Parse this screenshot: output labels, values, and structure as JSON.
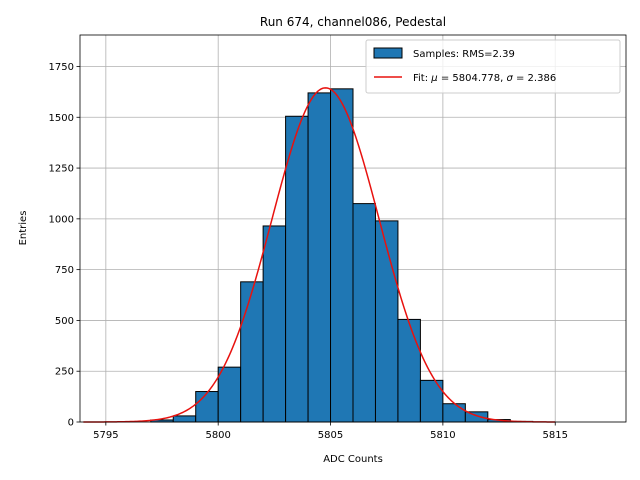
{
  "chart_data": {
    "type": "bar",
    "title": "Run 674, channel086, Pedestal",
    "xlabel": "ADC Counts",
    "ylabel": "Entries",
    "xlim": [
      5793.85,
      5818.15
    ],
    "ylim": [
      0,
      1905
    ],
    "x_ticks": [
      5795,
      5800,
      5805,
      5810,
      5815
    ],
    "y_ticks": [
      0,
      250,
      500,
      750,
      1000,
      1250,
      1500,
      1750
    ],
    "grid": true,
    "legend_position": "upper right",
    "histogram": {
      "name": "Samples: RMS=2.39",
      "color": "#1f77b4",
      "edge_color": "#000000",
      "bins": [
        {
          "left": 5797,
          "right": 5798,
          "value": 10
        },
        {
          "left": 5798,
          "right": 5799,
          "value": 30
        },
        {
          "left": 5799,
          "right": 5800,
          "value": 150
        },
        {
          "left": 5800,
          "right": 5801,
          "value": 270
        },
        {
          "left": 5801,
          "right": 5802,
          "value": 690
        },
        {
          "left": 5802,
          "right": 5803,
          "value": 965
        },
        {
          "left": 5803,
          "right": 5804,
          "value": 1505
        },
        {
          "left": 5804,
          "right": 5805,
          "value": 1620
        },
        {
          "left": 5805,
          "right": 5806,
          "value": 1640
        },
        {
          "left": 5806,
          "right": 5807,
          "value": 1075
        },
        {
          "left": 5807,
          "right": 5808,
          "value": 990
        },
        {
          "left": 5808,
          "right": 5809,
          "value": 505
        },
        {
          "left": 5809,
          "right": 5810,
          "value": 205
        },
        {
          "left": 5810,
          "right": 5811,
          "value": 90
        },
        {
          "left": 5811,
          "right": 5812,
          "value": 50
        },
        {
          "left": 5812,
          "right": 5813,
          "value": 12
        },
        {
          "left": 5813,
          "right": 5814,
          "value": 3
        }
      ]
    },
    "fit": {
      "legend_prefix": "Fit: ",
      "mu_symbol": "μ",
      "mu_text": " = 5804.778, ",
      "sigma_symbol": "σ",
      "sigma_text": " = 2.386",
      "mu": 5804.778,
      "sigma": 2.386,
      "amplitude": 1645,
      "x_range": [
        5794,
        5815
      ],
      "color": "#e8120f"
    }
  }
}
